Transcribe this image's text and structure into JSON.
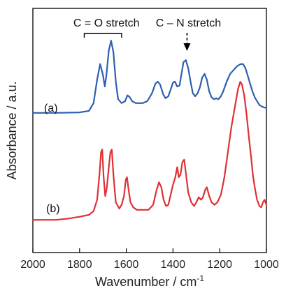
{
  "chart_data": {
    "type": "line",
    "xlabel": "Wavenumber / cm",
    "xlabel_sup": "-1",
    "ylabel": "Absorbance / a.u.",
    "xlim": [
      2000,
      1000
    ],
    "x_reversed": true,
    "x_ticks": [
      "2000",
      "1800",
      "1600",
      "1400",
      "1200",
      "1000"
    ],
    "y_ticks_labeled": false,
    "grid": false,
    "annotations": [
      {
        "id": "co",
        "text": "C = O stretch",
        "range": [
          1780,
          1620
        ]
      },
      {
        "id": "cn",
        "text": "C – N stretch",
        "x": 1340
      }
    ],
    "series": [
      {
        "label": "(a)",
        "color": "#2e5fb0",
        "points": [
          [
            2000,
            0.08
          ],
          [
            1900,
            0.08
          ],
          [
            1800,
            0.085
          ],
          [
            1760,
            0.1
          ],
          [
            1740,
            0.18
          ],
          [
            1725,
            0.42
          ],
          [
            1712,
            0.58
          ],
          [
            1700,
            0.47
          ],
          [
            1692,
            0.35
          ],
          [
            1685,
            0.47
          ],
          [
            1675,
            0.72
          ],
          [
            1665,
            0.82
          ],
          [
            1655,
            0.7
          ],
          [
            1645,
            0.4
          ],
          [
            1635,
            0.22
          ],
          [
            1620,
            0.18
          ],
          [
            1605,
            0.2
          ],
          [
            1595,
            0.26
          ],
          [
            1585,
            0.24
          ],
          [
            1575,
            0.2
          ],
          [
            1560,
            0.18
          ],
          [
            1530,
            0.18
          ],
          [
            1510,
            0.2
          ],
          [
            1490,
            0.28
          ],
          [
            1475,
            0.38
          ],
          [
            1465,
            0.4
          ],
          [
            1455,
            0.37
          ],
          [
            1442,
            0.27
          ],
          [
            1432,
            0.23
          ],
          [
            1420,
            0.25
          ],
          [
            1410,
            0.32
          ],
          [
            1400,
            0.39
          ],
          [
            1392,
            0.4
          ],
          [
            1382,
            0.35
          ],
          [
            1372,
            0.36
          ],
          [
            1365,
            0.46
          ],
          [
            1355,
            0.6
          ],
          [
            1345,
            0.62
          ],
          [
            1335,
            0.54
          ],
          [
            1325,
            0.4
          ],
          [
            1315,
            0.28
          ],
          [
            1305,
            0.25
          ],
          [
            1295,
            0.28
          ],
          [
            1285,
            0.34
          ],
          [
            1275,
            0.44
          ],
          [
            1265,
            0.48
          ],
          [
            1255,
            0.42
          ],
          [
            1245,
            0.3
          ],
          [
            1235,
            0.24
          ],
          [
            1225,
            0.22
          ],
          [
            1215,
            0.23
          ],
          [
            1205,
            0.22
          ],
          [
            1195,
            0.25
          ],
          [
            1185,
            0.3
          ],
          [
            1170,
            0.4
          ],
          [
            1155,
            0.48
          ],
          [
            1140,
            0.52
          ],
          [
            1125,
            0.56
          ],
          [
            1110,
            0.58
          ],
          [
            1100,
            0.58
          ],
          [
            1090,
            0.54
          ],
          [
            1080,
            0.46
          ],
          [
            1070,
            0.38
          ],
          [
            1060,
            0.3
          ],
          [
            1050,
            0.24
          ],
          [
            1040,
            0.2
          ],
          [
            1030,
            0.16
          ],
          [
            1015,
            0.14
          ],
          [
            1000,
            0.13
          ]
        ]
      },
      {
        "label": "(b)",
        "color": "#e03036",
        "points": [
          [
            2000,
            0.06
          ],
          [
            1900,
            0.06
          ],
          [
            1850,
            0.07
          ],
          [
            1800,
            0.085
          ],
          [
            1760,
            0.1
          ],
          [
            1740,
            0.13
          ],
          [
            1725,
            0.22
          ],
          [
            1715,
            0.42
          ],
          [
            1708,
            0.6
          ],
          [
            1703,
            0.62
          ],
          [
            1697,
            0.4
          ],
          [
            1690,
            0.25
          ],
          [
            1683,
            0.32
          ],
          [
            1675,
            0.48
          ],
          [
            1668,
            0.6
          ],
          [
            1662,
            0.62
          ],
          [
            1655,
            0.42
          ],
          [
            1645,
            0.2
          ],
          [
            1630,
            0.15
          ],
          [
            1620,
            0.18
          ],
          [
            1610,
            0.25
          ],
          [
            1602,
            0.38
          ],
          [
            1597,
            0.4
          ],
          [
            1590,
            0.3
          ],
          [
            1582,
            0.2
          ],
          [
            1570,
            0.16
          ],
          [
            1555,
            0.14
          ],
          [
            1530,
            0.14
          ],
          [
            1505,
            0.14
          ],
          [
            1485,
            0.18
          ],
          [
            1470,
            0.3
          ],
          [
            1460,
            0.36
          ],
          [
            1450,
            0.32
          ],
          [
            1440,
            0.22
          ],
          [
            1430,
            0.17
          ],
          [
            1420,
            0.18
          ],
          [
            1410,
            0.26
          ],
          [
            1400,
            0.34
          ],
          [
            1390,
            0.4
          ],
          [
            1382,
            0.48
          ],
          [
            1375,
            0.4
          ],
          [
            1368,
            0.42
          ],
          [
            1360,
            0.52
          ],
          [
            1352,
            0.54
          ],
          [
            1344,
            0.42
          ],
          [
            1335,
            0.28
          ],
          [
            1322,
            0.2
          ],
          [
            1310,
            0.17
          ],
          [
            1300,
            0.2
          ],
          [
            1290,
            0.24
          ],
          [
            1280,
            0.22
          ],
          [
            1272,
            0.24
          ],
          [
            1262,
            0.3
          ],
          [
            1255,
            0.32
          ],
          [
            1245,
            0.25
          ],
          [
            1235,
            0.2
          ],
          [
            1222,
            0.18
          ],
          [
            1210,
            0.2
          ],
          [
            1195,
            0.26
          ],
          [
            1180,
            0.4
          ],
          [
            1165,
            0.6
          ],
          [
            1150,
            0.8
          ],
          [
            1135,
            0.96
          ],
          [
            1122,
            1.1
          ],
          [
            1112,
            1.16
          ],
          [
            1105,
            1.14
          ],
          [
            1095,
            1.05
          ],
          [
            1085,
            0.9
          ],
          [
            1075,
            0.72
          ],
          [
            1065,
            0.55
          ],
          [
            1058,
            0.42
          ],
          [
            1050,
            0.32
          ],
          [
            1040,
            0.22
          ],
          [
            1030,
            0.17
          ],
          [
            1022,
            0.16
          ],
          [
            1015,
            0.2
          ],
          [
            1008,
            0.22
          ],
          [
            1000,
            0.18
          ]
        ]
      }
    ]
  }
}
